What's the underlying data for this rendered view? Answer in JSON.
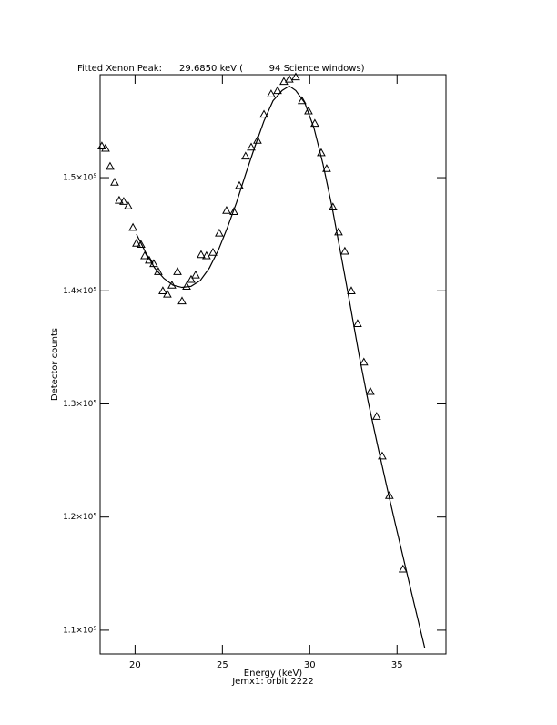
{
  "chart_data": {
    "type": "scatter",
    "title": "Fitted Xenon Peak:      29.6850 keV (         94 Science windows)",
    "xlabel": "Energy (keV)",
    "annotation": "Jemx1: orbit 2222",
    "ylabel": "Detector counts",
    "xlim": [
      18,
      37.8
    ],
    "ylim": [
      107900,
      159100
    ],
    "xticks": [
      20,
      25,
      30,
      35
    ],
    "yticks": [
      {
        "value": 110000,
        "label": "1.1×10⁵"
      },
      {
        "value": 120000,
        "label": "1.2×10⁵"
      },
      {
        "value": 130000,
        "label": "1.3×10⁵"
      },
      {
        "value": 140000,
        "label": "1.4×10⁵"
      },
      {
        "value": 150000,
        "label": "1.5×10⁵"
      }
    ],
    "grid": false,
    "series": [
      {
        "type": "scatter",
        "marker": "triangle",
        "color": "#000000",
        "x": [
          18.1,
          18.31,
          18.57,
          18.83,
          19.09,
          19.35,
          19.61,
          19.88,
          20.08,
          20.34,
          20.55,
          20.81,
          21.07,
          21.33,
          21.59,
          21.85,
          22.11,
          22.43,
          22.69,
          22.95,
          23.21,
          23.47,
          23.78,
          24.09,
          24.46,
          24.82,
          25.24,
          25.66,
          25.97,
          26.33,
          26.65,
          27.01,
          27.38,
          27.79,
          28.16,
          28.52,
          28.83,
          29.2,
          29.56,
          29.93,
          30.29,
          30.66,
          30.97,
          31.33,
          31.65,
          32.01,
          32.38,
          32.74,
          33.1,
          33.47,
          33.83,
          34.15,
          34.56,
          35.34
        ],
        "values": [
          152800,
          152600,
          151000,
          149600,
          148000,
          147900,
          147500,
          145600,
          144200,
          144100,
          143100,
          142700,
          142400,
          141700,
          140000,
          139700,
          140500,
          141700,
          139100,
          140400,
          141000,
          141400,
          143200,
          143100,
          143400,
          145100,
          147100,
          147000,
          149300,
          151900,
          152700,
          153300,
          155600,
          157400,
          157700,
          158500,
          158700,
          158900,
          156800,
          155900,
          154800,
          152200,
          150800,
          147400,
          145200,
          143500,
          140000,
          137100,
          133700,
          131100,
          128900,
          125400,
          121900,
          115400
        ]
      },
      {
        "type": "line",
        "color": "#000000",
        "x": [
          20.08,
          20.6,
          21.13,
          21.65,
          22.17,
          22.69,
          23.21,
          23.73,
          24.25,
          24.77,
          25.29,
          25.81,
          26.33,
          26.85,
          27.38,
          27.9,
          28.42,
          28.83,
          29.2,
          29.72,
          30.24,
          30.76,
          31.28,
          31.8,
          32.32,
          32.84,
          33.36,
          33.89,
          34.41,
          34.93,
          35.45,
          35.97,
          36.59
        ],
        "values": [
          145000,
          143400,
          142000,
          141100,
          140500,
          140300,
          140400,
          140900,
          142000,
          143600,
          145600,
          147800,
          150300,
          152700,
          155000,
          156800,
          157700,
          158100,
          157700,
          156600,
          154400,
          151200,
          147400,
          143100,
          138700,
          134200,
          130100,
          126300,
          122700,
          119200,
          115800,
          112400,
          108400
        ]
      }
    ]
  }
}
